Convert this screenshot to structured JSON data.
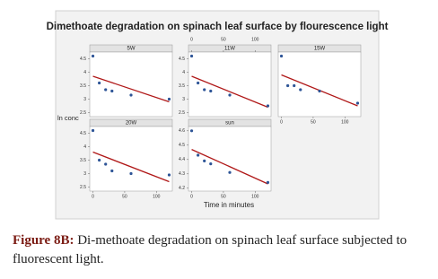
{
  "figure": {
    "title": "Dimethoate degradation on spinach leaf surface by flourescence light",
    "ylabel": "ln conc",
    "xlabel": "Time in minutes",
    "caption_label": "Figure 8B:",
    "caption_text": "Di-methoate degradation on spinach leaf surface subjected to fluorescent light."
  },
  "chart_data": [
    {
      "type": "scatter",
      "title": "5W",
      "color": "#2e5597",
      "fit_color": "#b01818",
      "x": [
        0,
        10,
        20,
        30,
        60,
        120
      ],
      "values": [
        4.6,
        3.6,
        3.35,
        3.3,
        3.15,
        3.0
      ],
      "fit": {
        "x": [
          0,
          120
        ],
        "values": [
          3.85,
          2.9
        ]
      },
      "xlim": [
        -5,
        125
      ],
      "ylim": [
        2.35,
        4.75
      ],
      "yticks": [
        2.5,
        3.0,
        3.5,
        4.0,
        4.5
      ]
    },
    {
      "type": "scatter",
      "title": "11W",
      "color": "#2e5597",
      "fit_color": "#b01818",
      "x": [
        0,
        10,
        20,
        30,
        60,
        120
      ],
      "values": [
        4.6,
        3.6,
        3.35,
        3.3,
        3.15,
        2.75
      ],
      "fit": {
        "x": [
          0,
          120
        ],
        "values": [
          3.85,
          2.7
        ]
      },
      "xlim": [
        -5,
        125
      ],
      "ylim": [
        2.35,
        4.75
      ],
      "xticks": [
        0,
        50,
        100
      ],
      "xtick_side": "top",
      "yticks": [
        2.5,
        3.0,
        3.5,
        4.0,
        4.5
      ]
    },
    {
      "type": "scatter",
      "title": "15W",
      "color": "#2e5597",
      "fit_color": "#b01818",
      "x": [
        0,
        10,
        20,
        30,
        60,
        120
      ],
      "values": [
        4.6,
        3.5,
        3.5,
        3.35,
        3.3,
        2.85
      ],
      "fit": {
        "x": [
          0,
          120
        ],
        "values": [
          3.9,
          2.75
        ]
      },
      "xlim": [
        -5,
        125
      ],
      "ylim": [
        2.35,
        4.75
      ],
      "xticks": [
        0,
        50,
        100
      ],
      "xtick_side": "bottom"
    },
    {
      "type": "scatter",
      "title": "20W",
      "color": "#2e5597",
      "fit_color": "#b01818",
      "x": [
        0,
        10,
        20,
        30,
        60,
        120
      ],
      "values": [
        4.6,
        3.5,
        3.35,
        3.1,
        3.0,
        2.95
      ],
      "fit": {
        "x": [
          0,
          120
        ],
        "values": [
          3.8,
          2.7
        ]
      },
      "xlim": [
        -5,
        125
      ],
      "ylim": [
        2.35,
        4.75
      ],
      "xticks": [
        0,
        50,
        100
      ],
      "xtick_side": "bottom",
      "yticks": [
        2.5,
        3.0,
        3.5,
        4.0,
        4.5
      ]
    },
    {
      "type": "scatter",
      "title": "sun",
      "color": "#2e5597",
      "fit_color": "#b01818",
      "x": [
        0,
        10,
        20,
        30,
        60,
        120
      ],
      "values": [
        4.6,
        4.43,
        4.39,
        4.37,
        4.31,
        4.24
      ],
      "fit": {
        "x": [
          0,
          120
        ],
        "values": [
          4.47,
          4.23
        ]
      },
      "xlim": [
        -5,
        125
      ],
      "ylim": [
        4.18,
        4.63
      ],
      "xticks": [
        0,
        50,
        100
      ],
      "xtick_side": "bottom",
      "yticks": [
        4.2,
        4.3,
        4.4,
        4.5,
        4.6
      ]
    }
  ]
}
